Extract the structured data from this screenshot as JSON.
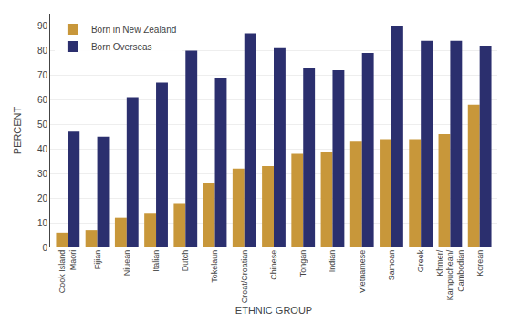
{
  "chart_data": {
    "type": "bar",
    "categories": [
      "Cook Island\nMaori",
      "Fijian",
      "Niuean",
      "Italian",
      "Dutch",
      "Tokelaun",
      "Croat/Croatian",
      "Chinese",
      "Tongan",
      "Indian",
      "Vietnamese",
      "Samoan",
      "Greek",
      "Khmer/\nKampuchean/\nCambodian",
      "Korean"
    ],
    "series": [
      {
        "name": "Born in New Zealand",
        "color": "#C8973A",
        "values": [
          6,
          7,
          12,
          14,
          18,
          26,
          32,
          33,
          38,
          39,
          43,
          44,
          44,
          46,
          58
        ]
      },
      {
        "name": "Born Overseas",
        "color": "#2B2F6E",
        "values": [
          47,
          45,
          61,
          67,
          80,
          69,
          87,
          81,
          73,
          72,
          79,
          90,
          84,
          84,
          82
        ]
      }
    ],
    "xlabel": "ETHNIC GROUP",
    "ylabel": "PERCENT",
    "ylim": [
      0,
      95
    ],
    "yticks": [
      0,
      10,
      20,
      30,
      40,
      50,
      60,
      70,
      80,
      90
    ],
    "grid": true,
    "legend": "upper left"
  }
}
